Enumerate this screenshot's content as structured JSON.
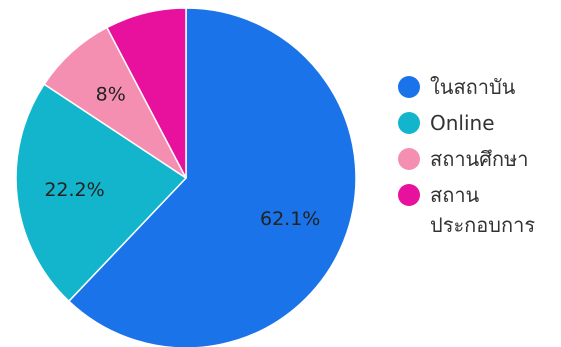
{
  "chart_data": {
    "type": "pie",
    "slices": [
      {
        "name": "ในสถาบัน",
        "value": 62.1,
        "label": "62.1%",
        "color": "#1a73e8"
      },
      {
        "name": "Online",
        "value": 22.2,
        "label": "22.2%",
        "color": "#12b5cb"
      },
      {
        "name": "สถานศึกษา",
        "value": 8.0,
        "label": "8%",
        "color": "#f48fb1"
      },
      {
        "name": "สถาน\nประกอบการ",
        "value": 7.7,
        "label": "",
        "color": "#e8119e"
      }
    ],
    "legend_position": "right",
    "start": "top",
    "direction": "clockwise"
  }
}
